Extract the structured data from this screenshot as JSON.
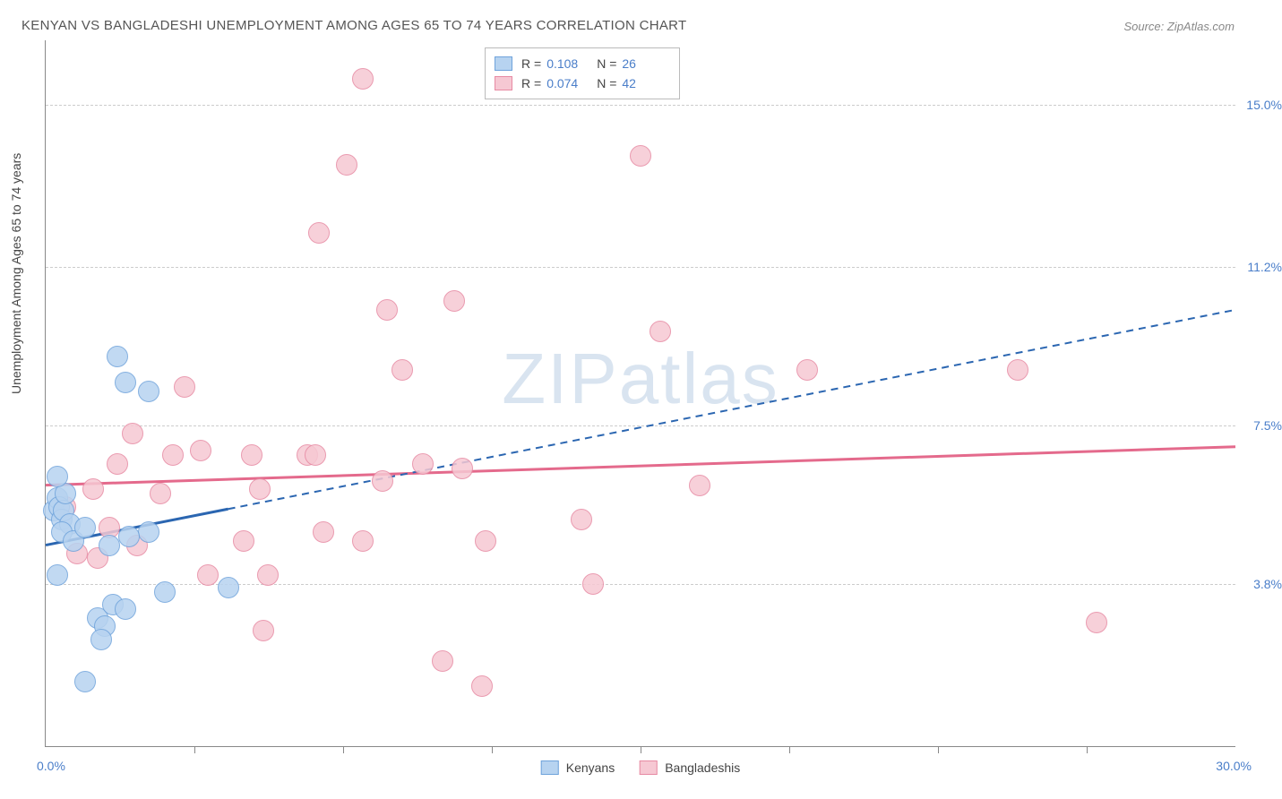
{
  "title": "KENYAN VS BANGLADESHI UNEMPLOYMENT AMONG AGES 65 TO 74 YEARS CORRELATION CHART",
  "source_prefix": "Source: ",
  "source_name": "ZipAtlas.com",
  "y_axis_label": "Unemployment Among Ages 65 to 74 years",
  "watermark_a": "ZIP",
  "watermark_b": "atlas",
  "chart": {
    "plot_bg": "#ffffff",
    "border_color": "#888888",
    "grid_color": "#cccccc",
    "x_min": 0.0,
    "x_max": 30.0,
    "x_min_label": "0.0%",
    "x_max_label": "30.0%",
    "y_min": 0.0,
    "y_max": 16.5,
    "y_gridlines": [
      {
        "value": 3.8,
        "label": "3.8%"
      },
      {
        "value": 7.5,
        "label": "7.5%"
      },
      {
        "value": 11.2,
        "label": "11.2%"
      },
      {
        "value": 15.0,
        "label": "15.0%"
      }
    ],
    "x_ticks_at": [
      3.75,
      7.5,
      11.25,
      15.0,
      18.75,
      22.5,
      26.25
    ],
    "marker_radius": 11,
    "marker_border_width": 1.2,
    "series": {
      "kenyans": {
        "label": "Kenyans",
        "fill": "#b7d3f0",
        "stroke": "#6fa3db",
        "line_color": "#2b66b1",
        "r_value": "0.108",
        "n_value": "26",
        "trend": {
          "x1": 0.0,
          "y1": 4.7,
          "x2": 30.0,
          "y2": 10.2,
          "solid_until_x": 4.6
        },
        "points": [
          {
            "x": 0.2,
            "y": 5.5
          },
          {
            "x": 0.3,
            "y": 5.8
          },
          {
            "x": 0.35,
            "y": 5.6
          },
          {
            "x": 0.4,
            "y": 5.3
          },
          {
            "x": 0.45,
            "y": 5.5
          },
          {
            "x": 0.5,
            "y": 5.9
          },
          {
            "x": 0.3,
            "y": 6.3
          },
          {
            "x": 0.6,
            "y": 5.2
          },
          {
            "x": 0.4,
            "y": 5.0
          },
          {
            "x": 0.7,
            "y": 4.8
          },
          {
            "x": 0.3,
            "y": 4.0
          },
          {
            "x": 1.3,
            "y": 3.0
          },
          {
            "x": 1.5,
            "y": 2.8
          },
          {
            "x": 1.7,
            "y": 3.3
          },
          {
            "x": 1.4,
            "y": 2.5
          },
          {
            "x": 1.0,
            "y": 1.5
          },
          {
            "x": 2.0,
            "y": 3.2
          },
          {
            "x": 3.0,
            "y": 3.6
          },
          {
            "x": 2.6,
            "y": 5.0
          },
          {
            "x": 1.0,
            "y": 5.1
          },
          {
            "x": 1.6,
            "y": 4.7
          },
          {
            "x": 2.0,
            "y": 8.5
          },
          {
            "x": 2.6,
            "y": 8.3
          },
          {
            "x": 1.8,
            "y": 9.1
          },
          {
            "x": 4.6,
            "y": 3.7
          },
          {
            "x": 2.1,
            "y": 4.9
          }
        ]
      },
      "bangladeshis": {
        "label": "Bangladeshis",
        "fill": "#f6c8d3",
        "stroke": "#e78aa3",
        "line_color": "#e46a8c",
        "r_value": "0.074",
        "n_value": "42",
        "trend": {
          "x1": 0.0,
          "y1": 6.1,
          "x2": 30.0,
          "y2": 7.0,
          "solid_until_x": 30.0
        },
        "points": [
          {
            "x": 1.6,
            "y": 5.1
          },
          {
            "x": 0.8,
            "y": 4.5
          },
          {
            "x": 2.3,
            "y": 4.7
          },
          {
            "x": 3.9,
            "y": 6.9
          },
          {
            "x": 3.2,
            "y": 6.8
          },
          {
            "x": 2.2,
            "y": 7.3
          },
          {
            "x": 3.5,
            "y": 8.4
          },
          {
            "x": 5.2,
            "y": 6.8
          },
          {
            "x": 6.6,
            "y": 6.8
          },
          {
            "x": 5.0,
            "y": 4.8
          },
          {
            "x": 5.6,
            "y": 4.0
          },
          {
            "x": 4.1,
            "y": 4.0
          },
          {
            "x": 5.5,
            "y": 2.7
          },
          {
            "x": 8.0,
            "y": 4.8
          },
          {
            "x": 8.5,
            "y": 6.2
          },
          {
            "x": 8.6,
            "y": 10.2
          },
          {
            "x": 9.0,
            "y": 8.8
          },
          {
            "x": 8.0,
            "y": 15.6
          },
          {
            "x": 7.6,
            "y": 13.6
          },
          {
            "x": 6.9,
            "y": 12.0
          },
          {
            "x": 10.5,
            "y": 6.5
          },
          {
            "x": 10.0,
            "y": 2.0
          },
          {
            "x": 11.0,
            "y": 1.4
          },
          {
            "x": 11.1,
            "y": 4.8
          },
          {
            "x": 13.8,
            "y": 3.8
          },
          {
            "x": 15.5,
            "y": 9.7
          },
          {
            "x": 15.0,
            "y": 13.8
          },
          {
            "x": 16.5,
            "y": 6.1
          },
          {
            "x": 19.2,
            "y": 8.8
          },
          {
            "x": 13.5,
            "y": 5.3
          },
          {
            "x": 24.5,
            "y": 8.8
          },
          {
            "x": 26.5,
            "y": 2.9
          },
          {
            "x": 1.2,
            "y": 6.0
          },
          {
            "x": 0.5,
            "y": 5.6
          },
          {
            "x": 7.0,
            "y": 5.0
          },
          {
            "x": 1.8,
            "y": 6.6
          },
          {
            "x": 2.9,
            "y": 5.9
          },
          {
            "x": 1.3,
            "y": 4.4
          },
          {
            "x": 9.5,
            "y": 6.6
          },
          {
            "x": 6.8,
            "y": 6.8
          },
          {
            "x": 5.4,
            "y": 6.0
          },
          {
            "x": 10.3,
            "y": 10.4
          }
        ]
      }
    }
  }
}
